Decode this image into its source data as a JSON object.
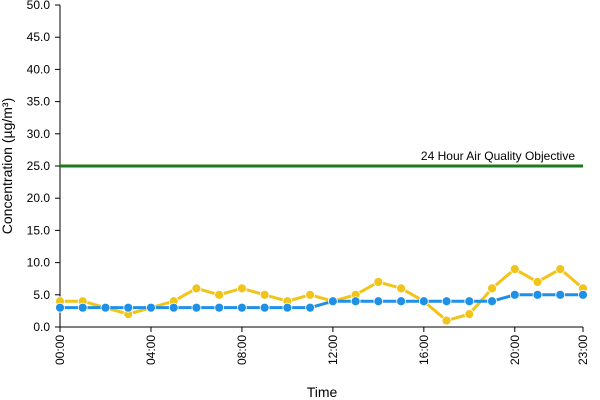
{
  "chart_data": {
    "type": "line",
    "title": "",
    "xlabel": "Time",
    "ylabel": "Concentration (µg/m³)",
    "ylim": [
      0,
      50
    ],
    "yticks": [
      "0.0",
      "5.0",
      "10.0",
      "15.0",
      "20.0",
      "25.0",
      "30.0",
      "35.0",
      "40.0",
      "45.0",
      "50.0"
    ],
    "x": [
      0,
      1,
      2,
      3,
      4,
      5,
      6,
      7,
      8,
      9,
      10,
      11,
      12,
      13,
      14,
      15,
      16,
      17,
      18,
      19,
      20,
      21,
      22,
      23
    ],
    "xticks": [
      {
        "hour": 0,
        "label": "00:00"
      },
      {
        "hour": 4,
        "label": "04:00"
      },
      {
        "hour": 8,
        "label": "08:00"
      },
      {
        "hour": 12,
        "label": "12:00"
      },
      {
        "hour": 16,
        "label": "16:00"
      },
      {
        "hour": 20,
        "label": "20:00"
      },
      {
        "hour": 23,
        "label": "23:00"
      }
    ],
    "series": [
      {
        "color": "#f0c419",
        "values": [
          4,
          4,
          3,
          2,
          3,
          4,
          6,
          5,
          6,
          5,
          4,
          5,
          4,
          5,
          7,
          6,
          4,
          1,
          2,
          6,
          9,
          7,
          9,
          6
        ]
      },
      {
        "color": "#1e90e6",
        "values": [
          3,
          3,
          3,
          3,
          3,
          3,
          3,
          3,
          3,
          3,
          3,
          3,
          4,
          4,
          4,
          4,
          4,
          4,
          4,
          4,
          5,
          5,
          5,
          5
        ]
      }
    ],
    "objective": {
      "value": 25,
      "label": "24 Hour Air Quality Objective",
      "color": "#1e7a1e"
    },
    "grid": false,
    "legend": "none"
  }
}
